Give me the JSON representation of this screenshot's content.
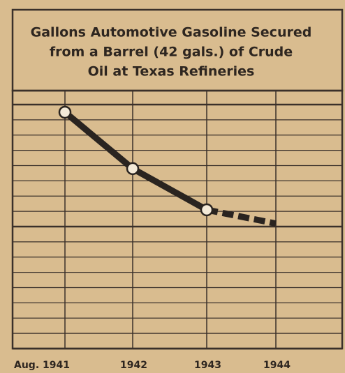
{
  "chart_data": {
    "type": "line",
    "title": [
      "Gallons Automotive Gasoline Secured",
      "from a Barrel (42 gals.) of Crude",
      "Oil at Texas Refineries"
    ],
    "categories": [
      "Aug. 1941",
      "1942",
      "1943",
      "1944"
    ],
    "series": [
      {
        "color": "#2a2420",
        "values": [
          15.5,
          11.8,
          9.1,
          null
        ]
      },
      {
        "color": "#2a2420",
        "values": [
          null,
          null,
          9.1,
          8.2
        ],
        "dashed": true
      }
    ],
    "ylim": [
      0,
      16
    ],
    "ygrid": [
      0,
      1,
      2,
      3,
      4,
      5,
      6,
      7,
      8,
      9,
      10,
      11,
      12,
      13,
      14,
      15,
      16
    ],
    "grid": true
  }
}
